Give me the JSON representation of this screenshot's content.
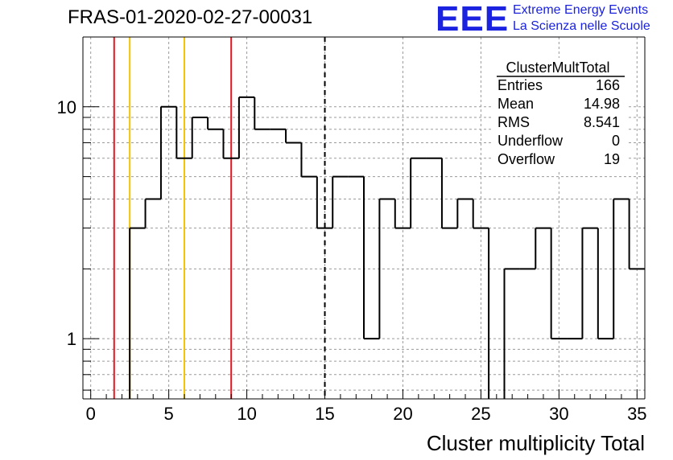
{
  "title": "FRAS-01-2020-02-27-00031",
  "logo": {
    "mark": "EEE",
    "line1": "Extreme Energy Events",
    "line2": "La Scienza nelle Scuole",
    "color": "#1b22e0"
  },
  "stats_box": {
    "name": "ClusterMultTotal",
    "rows": [
      {
        "label": "Entries",
        "value": "166"
      },
      {
        "label": "Mean",
        "value": "14.98"
      },
      {
        "label": "RMS",
        "value": "8.541"
      },
      {
        "label": "Underflow",
        "value": "0"
      },
      {
        "label": "Overflow",
        "value": "19"
      }
    ]
  },
  "chart_data": {
    "type": "bar",
    "histogram": true,
    "xlabel": "Cluster multiplicity Total",
    "ylabel": "",
    "xlim": [
      -0.5,
      35.5
    ],
    "ylim": [
      0.55,
      20
    ],
    "y_scale": "log",
    "grid": true,
    "x_ticks": [
      0,
      5,
      10,
      15,
      20,
      25,
      30,
      35
    ],
    "y_ticks": [
      1,
      10
    ],
    "bin_edges": [
      -0.5,
      0.5,
      1.5,
      2.5,
      3.5,
      4.5,
      5.5,
      6.5,
      7.5,
      8.5,
      9.5,
      10.5,
      11.5,
      12.5,
      13.5,
      14.5,
      15.5,
      16.5,
      17.5,
      18.5,
      19.5,
      20.5,
      21.5,
      22.5,
      23.5,
      24.5,
      25.5,
      26.5,
      27.5,
      28.5,
      29.5,
      30.5,
      31.5,
      32.5,
      33.5,
      34.5,
      35.5
    ],
    "values": [
      0,
      0,
      0,
      3,
      4,
      10,
      6,
      9,
      8,
      6,
      11,
      8,
      8,
      7,
      5,
      3,
      5,
      5,
      1,
      4,
      3,
      6,
      6,
      3,
      4,
      3,
      0,
      2,
      2,
      3,
      1,
      1,
      3,
      1,
      4,
      2
    ],
    "vertical_lines": [
      {
        "x": 1.5,
        "color": "#e8141e",
        "style": "solid"
      },
      {
        "x": 2.5,
        "color": "#f5c400",
        "style": "solid"
      },
      {
        "x": 6.0,
        "color": "#f5c400",
        "style": "solid"
      },
      {
        "x": 9.0,
        "color": "#e8141e",
        "style": "solid"
      },
      {
        "x": 15.0,
        "color": "#000000",
        "style": "dashed"
      }
    ],
    "line_color": "#000000"
  }
}
